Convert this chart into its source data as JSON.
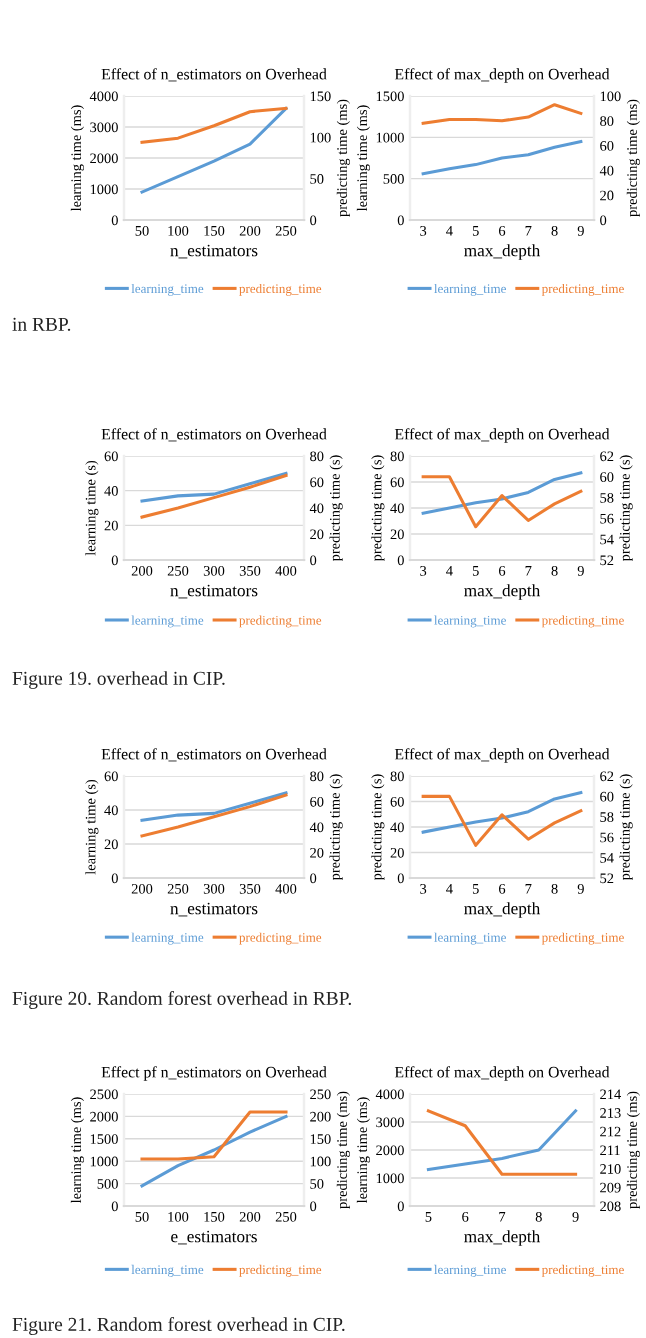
{
  "chart_data": [
    {
      "type": "line",
      "title": "Effect of n_estimators on Overhead",
      "xlabel": "n_estimators",
      "ylabel": "learning time (ms)",
      "y2label": "predicting time (ms)",
      "categories": [
        "50",
        "100",
        "150",
        "200",
        "250"
      ],
      "ylim": [
        0,
        4000
      ],
      "yticks": [
        0,
        1000,
        2000,
        3000,
        4000
      ],
      "y2lim": [
        0,
        150
      ],
      "y2ticks": [
        0,
        50,
        100,
        150
      ],
      "grid": "y",
      "legend": "bottom",
      "series": [
        {
          "name": "learning_time",
          "color": "#5b9bd5",
          "values": [
            900,
            1400,
            1900,
            2450,
            3600
          ]
        },
        {
          "name": "predicting_time",
          "color": "#ed7d31",
          "axis": "y2",
          "values": [
            94,
            99,
            114,
            131,
            135
          ]
        }
      ]
    },
    {
      "type": "line",
      "title": "Effect of max_depth on Overhead",
      "xlabel": "max_depth",
      "ylabel": "learning time (ms)",
      "y2label": "predicting time (ms)",
      "categories": [
        "3",
        "4",
        "5",
        "6",
        "7",
        "8",
        "9"
      ],
      "ylim": [
        0,
        1500
      ],
      "yticks": [
        0,
        500,
        1000,
        1500
      ],
      "y2lim": [
        0,
        100
      ],
      "y2ticks": [
        0,
        20,
        40,
        60,
        80,
        100
      ],
      "grid": "y",
      "legend": "bottom",
      "annotations": [
        {
          "text": "in RBP."
        }
      ],
      "series": [
        {
          "name": "learning_time",
          "color": "#5b9bd5",
          "values": [
            560,
            620,
            670,
            750,
            790,
            880,
            950
          ]
        },
        {
          "name": "predicting_time",
          "color": "#ed7d31",
          "axis": "y2",
          "values": [
            78,
            81,
            81,
            80,
            83,
            93,
            86
          ]
        }
      ]
    },
    {
      "type": "line",
      "title": "Effect of n_estimators on Overhead",
      "xlabel": "n_estimators",
      "ylabel": "learning time (s)",
      "y2label": "predicting time (s)",
      "categories": [
        "200",
        "250",
        "300",
        "350",
        "400"
      ],
      "ylim": [
        0,
        60
      ],
      "yticks": [
        0,
        20,
        40,
        60
      ],
      "y2lim": [
        0,
        80
      ],
      "y2ticks": [
        0,
        20,
        40,
        60,
        80
      ],
      "grid": "y",
      "legend": "bottom",
      "series": [
        {
          "name": "learning_time",
          "color": "#5b9bd5",
          "values": [
            34,
            37,
            38,
            44,
            50
          ]
        },
        {
          "name": "predicting_time",
          "color": "#ed7d31",
          "axis": "y2",
          "values": [
            33,
            40,
            48,
            56,
            65
          ]
        }
      ]
    },
    {
      "type": "line",
      "title": "Effect of max_depth on Overhead",
      "xlabel": "max_depth",
      "ylabel": "predicting time (s)",
      "y2label": "predicting time (s)",
      "categories": [
        "3",
        "4",
        "5",
        "6",
        "7",
        "8",
        "9"
      ],
      "ylim": [
        0,
        80
      ],
      "yticks": [
        0,
        20,
        40,
        60,
        80
      ],
      "y2lim": [
        52,
        62
      ],
      "y2ticks": [
        52,
        54,
        56,
        58,
        60,
        62
      ],
      "grid": "y",
      "legend": "bottom",
      "annotations": [
        {
          "text": "Figure 19. overhead in CIP."
        }
      ],
      "series": [
        {
          "name": "learning_time",
          "color": "#5b9bd5",
          "values": [
            36,
            40,
            44,
            47,
            52,
            62,
            67
          ]
        },
        {
          "name": "predicting_time",
          "color": "#ed7d31",
          "axis": "y2",
          "values": [
            60,
            60,
            55.2,
            58.2,
            55.8,
            57.4,
            58.6
          ]
        }
      ]
    },
    {
      "type": "line",
      "title": "Effect of n_estimators on Overhead",
      "xlabel": "n_estimators",
      "ylabel": "learning time (s)",
      "y2label": "predicting time (s)",
      "categories": [
        "200",
        "250",
        "300",
        "350",
        "400"
      ],
      "ylim": [
        0,
        60
      ],
      "yticks": [
        0,
        20,
        40,
        60
      ],
      "y2lim": [
        0,
        80
      ],
      "y2ticks": [
        0,
        20,
        40,
        60,
        80
      ],
      "grid": "y",
      "legend": "bottom",
      "series": [
        {
          "name": "learning_time",
          "color": "#5b9bd5",
          "values": [
            34,
            37,
            38,
            44,
            50
          ]
        },
        {
          "name": "predicting_time",
          "color": "#ed7d31",
          "axis": "y2",
          "values": [
            33,
            40,
            48,
            56,
            65
          ]
        }
      ]
    },
    {
      "type": "line",
      "title": "Effect of max_depth on Overhead",
      "xlabel": "max_depth",
      "ylabel": "predicting time (s)",
      "y2label": "predicting time (s)",
      "categories": [
        "3",
        "4",
        "5",
        "6",
        "7",
        "8",
        "9"
      ],
      "ylim": [
        0,
        80
      ],
      "yticks": [
        0,
        20,
        40,
        60,
        80
      ],
      "y2lim": [
        52,
        62
      ],
      "y2ticks": [
        52,
        54,
        56,
        58,
        60,
        62
      ],
      "grid": "y",
      "legend": "bottom",
      "annotations": [
        {
          "text": "Figure 20. Random forest overhead in RBP."
        }
      ],
      "series": [
        {
          "name": "learning_time",
          "color": "#5b9bd5",
          "values": [
            36,
            40,
            44,
            47,
            52,
            62,
            67
          ]
        },
        {
          "name": "predicting_time",
          "color": "#ed7d31",
          "axis": "y2",
          "values": [
            60,
            60,
            55.2,
            58.2,
            55.8,
            57.4,
            58.6
          ]
        }
      ]
    },
    {
      "type": "line",
      "title": "Effect pf n_estimators on Overhead",
      "xlabel": "e_estimators",
      "ylabel": "learning time (ms)",
      "y2label": "predicting time (ms)",
      "categories": [
        "50",
        "100",
        "150",
        "200",
        "250"
      ],
      "ylim": [
        0,
        2500
      ],
      "yticks": [
        0,
        500,
        1000,
        1500,
        2000,
        2500
      ],
      "y2lim": [
        0,
        250
      ],
      "y2ticks": [
        0,
        50,
        100,
        150,
        200,
        250
      ],
      "grid": "y",
      "legend": "bottom",
      "series": [
        {
          "name": "learning_time",
          "color": "#5b9bd5",
          "values": [
            450,
            900,
            1250,
            1650,
            2000
          ]
        },
        {
          "name": "predicting_time",
          "color": "#ed7d31",
          "axis": "y2",
          "values": [
            105,
            105,
            110,
            210,
            210
          ]
        }
      ]
    },
    {
      "type": "line",
      "title": "Effect of max_depth on Overhead",
      "xlabel": "max_depth",
      "ylabel": "learning time (ms)",
      "y2label": "predicting time (ms)",
      "categories": [
        "5",
        "6",
        "7",
        "8",
        "9"
      ],
      "ylim": [
        0,
        4000
      ],
      "yticks": [
        0,
        1000,
        2000,
        3000,
        4000
      ],
      "y2lim": [
        208,
        214
      ],
      "y2ticks": [
        208,
        209,
        210,
        211,
        212,
        213,
        214
      ],
      "grid": "y",
      "legend": "bottom",
      "annotations": [
        {
          "text": "Figure 21. Random forest overhead in CIP."
        }
      ],
      "series": [
        {
          "name": "learning_time",
          "color": "#5b9bd5",
          "values": [
            1300,
            1500,
            1700,
            2000,
            3400
          ]
        },
        {
          "name": "predicting_time",
          "color": "#ed7d31",
          "axis": "y2",
          "values": [
            213.1,
            212.3,
            209.7,
            209.7,
            209.7
          ]
        }
      ]
    }
  ]
}
